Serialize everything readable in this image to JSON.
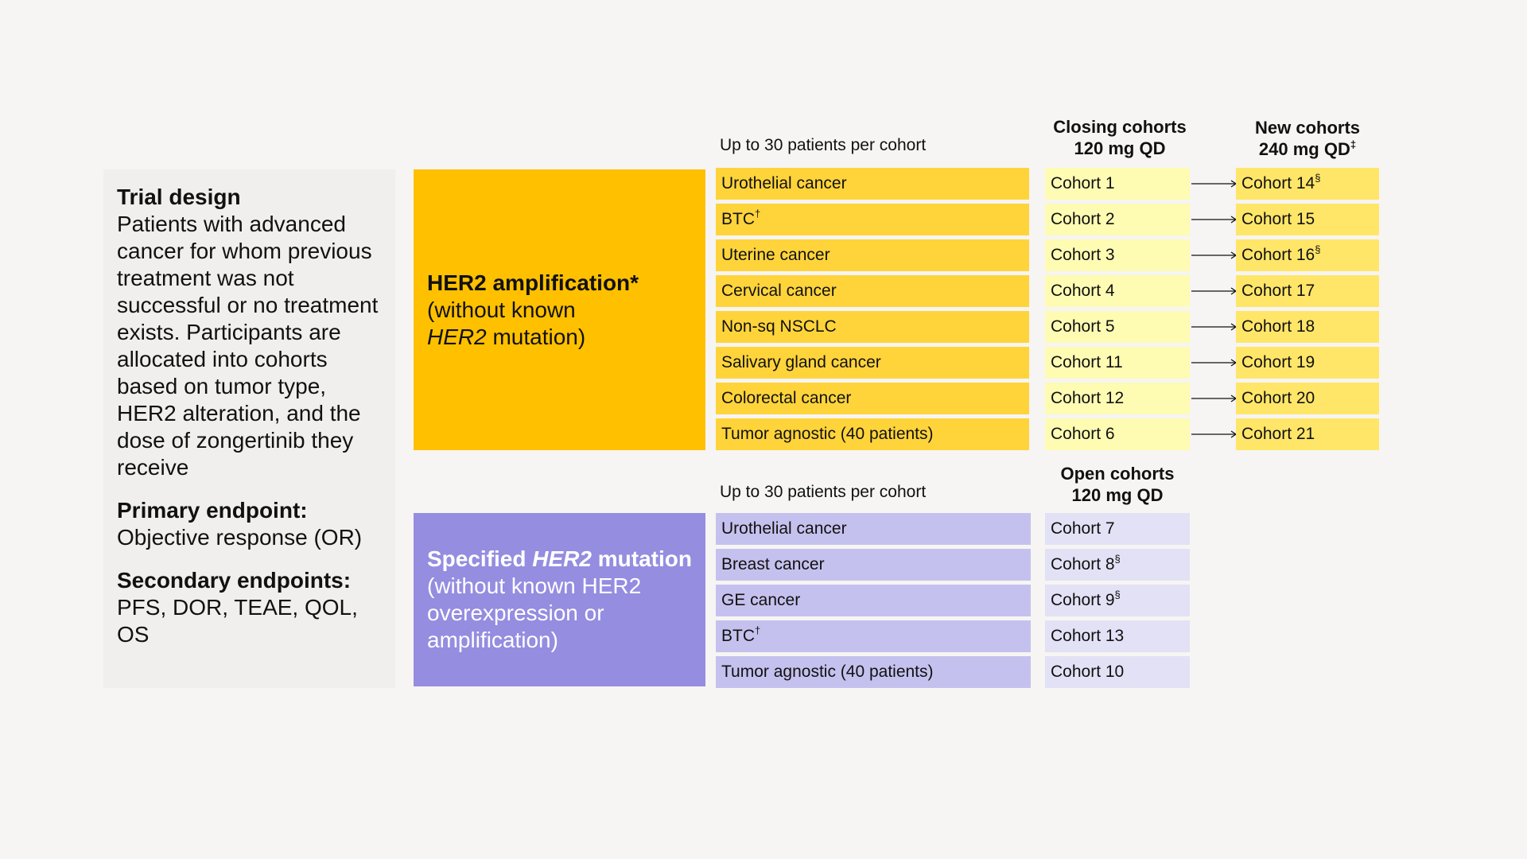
{
  "trial_design": {
    "title": "Trial design",
    "description": "Patients with advanced cancer for whom previous treatment was not successful or no treatment exists. Participants are allocated into cohorts based on tumor type, HER2 alteration, and the dose of zongertinib they receive",
    "primary_label": "Primary endpoint:",
    "primary_value": "Objective response (OR)",
    "secondary_label": "Secondary endpoints:",
    "secondary_value": "PFS, DOR, TEAE, QOL, OS"
  },
  "amplification": {
    "caption": "Up to 30 patients per cohort",
    "closing_header": [
      "Closing cohorts",
      "120 mg QD"
    ],
    "new_header": [
      "New cohorts",
      "240 mg QD",
      "‡"
    ],
    "group_title": "HER2 amplification*",
    "group_sub_1": "(without known",
    "group_sub_2_it": "HER2",
    "group_sub_2_rest": " mutation)",
    "rows": [
      {
        "cancer": "Urothelial cancer",
        "cancer_sup": "",
        "closing": "Cohort 1",
        "new": "Cohort 14",
        "new_sup": "§"
      },
      {
        "cancer": "BTC",
        "cancer_sup": "†",
        "closing": "Cohort 2",
        "new": "Cohort 15",
        "new_sup": ""
      },
      {
        "cancer": "Uterine cancer",
        "cancer_sup": "",
        "closing": "Cohort 3",
        "new": "Cohort 16",
        "new_sup": "§"
      },
      {
        "cancer": "Cervical cancer",
        "cancer_sup": "",
        "closing": "Cohort 4",
        "new": "Cohort 17",
        "new_sup": ""
      },
      {
        "cancer": "Non-sq NSCLC",
        "cancer_sup": "",
        "closing": "Cohort 5",
        "new": "Cohort 18",
        "new_sup": ""
      },
      {
        "cancer": "Salivary gland cancer",
        "cancer_sup": "",
        "closing": "Cohort 11",
        "new": "Cohort 19",
        "new_sup": ""
      },
      {
        "cancer": "Colorectal cancer",
        "cancer_sup": "",
        "closing": "Cohort 12",
        "new": "Cohort 20",
        "new_sup": ""
      },
      {
        "cancer": "Tumor agnostic (40 patients)",
        "cancer_sup": "",
        "closing": "Cohort 6",
        "new": "Cohort 21",
        "new_sup": ""
      }
    ]
  },
  "mutation": {
    "caption": "Up to 30 patients per cohort",
    "open_header": [
      "Open cohorts",
      "120 mg QD"
    ],
    "group_title_pre": "Specified ",
    "group_title_it": "HER2",
    "group_title_post": " mutation",
    "group_sub": "(without known HER2 overexpression or amplification)",
    "rows": [
      {
        "cancer": "Urothelial cancer",
        "cancer_sup": "",
        "open": "Cohort 7",
        "open_sup": ""
      },
      {
        "cancer": "Breast cancer",
        "cancer_sup": "",
        "open": "Cohort 8",
        "open_sup": "§"
      },
      {
        "cancer": "GE cancer",
        "cancer_sup": "",
        "open": "Cohort 9",
        "open_sup": "§"
      },
      {
        "cancer": "BTC",
        "cancer_sup": "†",
        "open": "Cohort 13",
        "open_sup": ""
      },
      {
        "cancer": "Tumor agnostic (40 patients)",
        "cancer_sup": "",
        "open": "Cohort 10",
        "open_sup": ""
      }
    ]
  },
  "colors": {
    "amp_group": "#ffc000",
    "amp_cancer": "#ffd43b",
    "closing_cohort": "#fefbb3",
    "new_cohort": "#ffe668",
    "mut_group": "#958de0",
    "mut_cancer": "#c5c1ee",
    "open_cohort": "#e2e1f5"
  }
}
